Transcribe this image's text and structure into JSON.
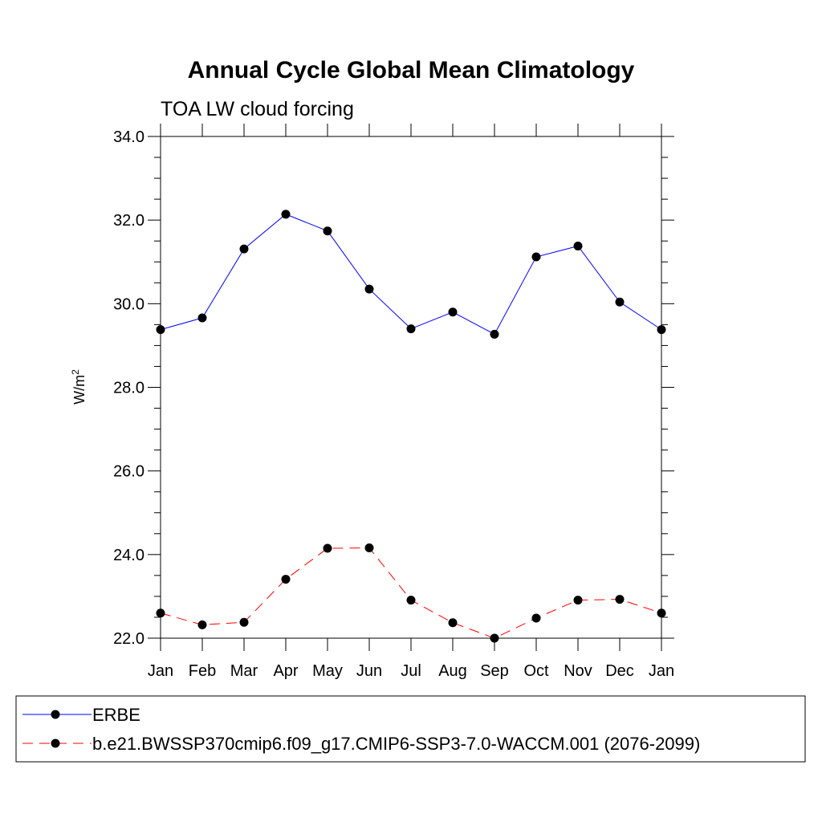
{
  "chart_data": {
    "type": "line",
    "title": "Annual Cycle Global Mean Climatology",
    "subtitle": "TOA LW cloud forcing",
    "ylabel": "W/m",
    "ylabel_superscript": "2",
    "ylim": [
      22.0,
      34.0
    ],
    "yticks": [
      "22.0",
      "24.0",
      "26.0",
      "28.0",
      "30.0",
      "32.0",
      "34.0"
    ],
    "categories": [
      "Jan",
      "Feb",
      "Mar",
      "Apr",
      "May",
      "Jun",
      "Jul",
      "Aug",
      "Sep",
      "Oct",
      "Nov",
      "Dec",
      "Jan"
    ],
    "grid": false,
    "legend_position": "bottom",
    "series": [
      {
        "name": "ERBE",
        "color": "#0000ff",
        "dash": "solid",
        "values": [
          29.38,
          29.66,
          31.31,
          32.14,
          31.74,
          30.35,
          29.4,
          29.8,
          29.27,
          31.12,
          31.38,
          30.04,
          29.38
        ]
      },
      {
        "name": "b.e21.BWSSP370cmip6.f09_g17.CMIP6-SSP3-7.0-WACCM.001 (2076-2099)",
        "color": "#ff0000",
        "dash": "dashed",
        "values": [
          22.6,
          22.32,
          22.38,
          23.41,
          24.15,
          24.16,
          22.91,
          22.37,
          22.0,
          22.48,
          22.91,
          22.93,
          22.6
        ]
      }
    ]
  }
}
